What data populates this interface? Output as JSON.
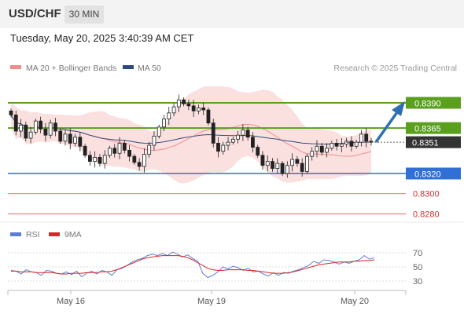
{
  "header": {
    "symbol": "USD/CHF",
    "timeframe": "30 MIN",
    "timestamp": "Tuesday, May 20, 2025 3:40:39 AM CET"
  },
  "legend": {
    "ma20_label": "MA 20 + Bollinger Bands",
    "ma50_label": "MA 50",
    "ma20_color": "#f08c8c",
    "ma50_color": "#2e4a7a",
    "credit": "Research © 2025 Trading Central"
  },
  "colors": {
    "resistance": "#5aa01e",
    "support": "#2f6fd6",
    "target_line": "#e05050",
    "target_text": "#d32f2f",
    "arrow": "#2f6fb0",
    "current_price_bg": "#333333",
    "bollinger_fill": "#fbe0e0",
    "candle_up": "#ffffff",
    "candle_down": "#222222",
    "rsi": "#5b7fd6",
    "rsi_ma": "#d92626"
  },
  "chart_data": [
    {
      "type": "candlestick",
      "instrument": "USD/CHF",
      "timeframe": "30 MIN",
      "x_ticks": [
        "May 16",
        "May 19",
        "May 20"
      ],
      "y_range": [
        0.8262,
        0.842
      ],
      "series": [
        {
          "name": "MA 20 + Bollinger Bands"
        },
        {
          "name": "MA 50"
        }
      ],
      "ohlc_close": [
        0.8378,
        0.8362,
        0.8368,
        0.8355,
        0.8361,
        0.8372,
        0.8364,
        0.8358,
        0.837,
        0.8362,
        0.8352,
        0.8359,
        0.835,
        0.8356,
        0.8347,
        0.8338,
        0.8332,
        0.8336,
        0.833,
        0.8338,
        0.8345,
        0.834,
        0.835,
        0.8343,
        0.8337,
        0.8331,
        0.8327,
        0.8339,
        0.8348,
        0.8357,
        0.8366,
        0.8374,
        0.838,
        0.8386,
        0.8393,
        0.8389,
        0.8387,
        0.8382,
        0.8385,
        0.8383,
        0.837,
        0.835,
        0.8342,
        0.8348,
        0.8351,
        0.8354,
        0.8358,
        0.8363,
        0.8356,
        0.8346,
        0.8338,
        0.8328,
        0.8332,
        0.8325,
        0.833,
        0.832,
        0.8328,
        0.8334,
        0.833,
        0.8322,
        0.8337,
        0.8342,
        0.8347,
        0.8341,
        0.8345,
        0.835,
        0.8347,
        0.8349,
        0.8352,
        0.8347,
        0.8351,
        0.8359,
        0.8352,
        0.8351
      ],
      "key_levels": [
        {
          "label": "0.8390",
          "value": 0.839,
          "kind": "resistance"
        },
        {
          "label": "0.8365",
          "value": 0.8365,
          "kind": "resistance"
        },
        {
          "label": "0.8351",
          "value": 0.8351,
          "kind": "current"
        },
        {
          "label": "0.8320",
          "value": 0.832,
          "kind": "support"
        },
        {
          "label": "0.8300",
          "value": 0.83,
          "kind": "target"
        },
        {
          "label": "0.8280",
          "value": 0.828,
          "kind": "target"
        }
      ],
      "annotation": "upward arrow toward 0.8390"
    },
    {
      "type": "line",
      "legend": [
        "RSI",
        "9MA"
      ],
      "y_ticks": [
        70,
        50,
        30
      ],
      "y_range": [
        20,
        80
      ],
      "series": [
        {
          "name": "RSI",
          "values": [
            45,
            44,
            40,
            46,
            43,
            42,
            38,
            45,
            44,
            41,
            40,
            43,
            39,
            44,
            36,
            41,
            44,
            40,
            45,
            43,
            38,
            46,
            48,
            52,
            57,
            60,
            62,
            66,
            68,
            66,
            69,
            66,
            71,
            68,
            64,
            67,
            62,
            58,
            41,
            35,
            38,
            43,
            50,
            47,
            51,
            49,
            45,
            48,
            43,
            44,
            40,
            37,
            42,
            38,
            42,
            41,
            44,
            46,
            49,
            52,
            58,
            55,
            60,
            59,
            57,
            54,
            57,
            55,
            58,
            60,
            66,
            61,
            63
          ]
        },
        {
          "name": "9MA",
          "values": [
            44,
            44,
            43,
            43,
            43,
            42,
            42,
            42,
            42,
            41,
            40,
            40,
            41,
            41,
            41,
            42,
            42,
            42,
            43,
            43,
            44,
            46,
            49,
            52,
            55,
            58,
            61,
            63,
            64,
            65,
            66,
            66,
            66,
            66,
            65,
            63,
            60,
            56,
            52,
            48,
            46,
            45,
            45,
            46,
            46,
            46,
            46,
            45,
            45,
            44,
            43,
            42,
            41,
            41,
            41,
            42,
            43,
            45,
            47,
            49,
            51,
            53,
            54,
            55,
            56,
            57,
            57,
            57,
            58,
            58,
            59,
            59,
            60
          ]
        }
      ]
    }
  ],
  "rsi_legend": {
    "rsi_label": "RSI",
    "ma_label": "9MA"
  }
}
